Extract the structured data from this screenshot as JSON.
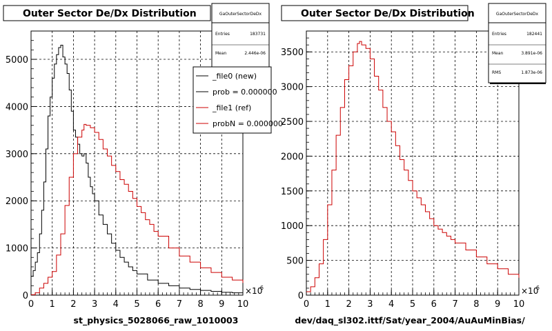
{
  "chart_data": [
    {
      "type": "line",
      "title": "Outer Sector De/Dx Distribution",
      "xlabel": "st_physics_5028066_raw_1010003",
      "x_exponent": "-6",
      "xlim": [
        0,
        10
      ],
      "ylim": [
        0,
        5600
      ],
      "xticks": [
        "0",
        "1",
        "2",
        "3",
        "4",
        "5",
        "6",
        "7",
        "8",
        "9",
        "10"
      ],
      "yticks": [
        "0",
        "1000",
        "2000",
        "3000",
        "4000",
        "5000"
      ],
      "grid": true,
      "stats": {
        "name": "GaOuterSectorDeDx",
        "rows": [
          {
            "label": "Entries",
            "value": "183731"
          },
          {
            "label": "Mean",
            "value": "2.446e-06"
          }
        ]
      },
      "legend": {
        "placement": "top-right",
        "entries": [
          "_file0 (new)",
          "prob = 0.000000",
          "_file1 (ref)",
          "probN = 0.000000"
        ]
      },
      "series": [
        {
          "name": "_file0 (new)",
          "color": "#000000",
          "x": [
            0.0,
            0.1,
            0.2,
            0.3,
            0.4,
            0.5,
            0.6,
            0.7,
            0.8,
            0.9,
            1.0,
            1.1,
            1.2,
            1.3,
            1.4,
            1.5,
            1.6,
            1.7,
            1.8,
            1.9,
            2.0,
            2.1,
            2.2,
            2.3,
            2.4,
            2.5,
            2.6,
            2.7,
            2.8,
            2.9,
            3.0,
            3.2,
            3.4,
            3.6,
            3.8,
            4.0,
            4.2,
            4.4,
            4.6,
            4.8,
            5.0,
            5.5,
            6.0,
            6.5,
            7.0,
            7.5,
            8.0,
            8.5,
            9.0,
            9.5,
            10.0
          ],
          "y": [
            400,
            520,
            700,
            900,
            1300,
            1800,
            2400,
            3100,
            3800,
            4200,
            4600,
            4900,
            5100,
            5250,
            5300,
            5050,
            4900,
            4700,
            4350,
            3900,
            3500,
            3350,
            3200,
            3000,
            2950,
            3000,
            2800,
            2500,
            2300,
            2150,
            2000,
            1700,
            1500,
            1300,
            1100,
            950,
            800,
            700,
            600,
            520,
            450,
            320,
            250,
            200,
            150,
            120,
            100,
            80,
            60,
            50,
            40
          ]
        },
        {
          "name": "_file1 (ref)",
          "color": "#cc0000",
          "x": [
            0.0,
            0.2,
            0.4,
            0.6,
            0.8,
            1.0,
            1.2,
            1.4,
            1.6,
            1.8,
            2.0,
            2.2,
            2.4,
            2.5,
            2.6,
            2.8,
            3.0,
            3.2,
            3.4,
            3.6,
            3.8,
            4.0,
            4.2,
            4.4,
            4.6,
            4.8,
            5.0,
            5.2,
            5.4,
            5.6,
            5.8,
            6.0,
            6.5,
            7.0,
            7.5,
            8.0,
            8.5,
            9.0,
            9.5,
            10.0
          ],
          "y": [
            10,
            50,
            150,
            250,
            380,
            500,
            850,
            1300,
            1900,
            2500,
            3000,
            3350,
            3500,
            3620,
            3600,
            3550,
            3450,
            3300,
            3100,
            2950,
            2750,
            2620,
            2450,
            2350,
            2200,
            2050,
            1880,
            1750,
            1600,
            1500,
            1350,
            1250,
            1000,
            830,
            700,
            580,
            480,
            380,
            320,
            260
          ]
        }
      ]
    },
    {
      "type": "line",
      "title": "Outer Sector De/Dx Distribution",
      "xlabel": "dev/daq_sl302.ittf/Sat/year_2004/AuAuMinBias/",
      "x_exponent": "-6",
      "xlim": [
        0,
        10
      ],
      "ylim": [
        0,
        3800
      ],
      "xticks": [
        "0",
        "1",
        "2",
        "3",
        "4",
        "5",
        "6",
        "7",
        "8",
        "9",
        "10"
      ],
      "yticks": [
        "0",
        "500",
        "1000",
        "1500",
        "2000",
        "2500",
        "3000",
        "3500"
      ],
      "grid": true,
      "stats": {
        "name": "GaOuterSectorDeDx",
        "rows": [
          {
            "label": "Entries",
            "value": "182441"
          },
          {
            "label": "Mean",
            "value": "3.891e-06"
          },
          {
            "label": "RMS",
            "value": "1.873e-06"
          }
        ]
      },
      "series": [
        {
          "color": "#cc0000",
          "x": [
            0.0,
            0.2,
            0.4,
            0.6,
            0.8,
            1.0,
            1.2,
            1.4,
            1.6,
            1.8,
            2.0,
            2.2,
            2.4,
            2.5,
            2.6,
            2.8,
            3.0,
            3.2,
            3.4,
            3.6,
            3.8,
            4.0,
            4.2,
            4.4,
            4.6,
            4.8,
            5.0,
            5.2,
            5.4,
            5.6,
            5.8,
            6.0,
            6.2,
            6.4,
            6.6,
            6.8,
            7.0,
            7.5,
            8.0,
            8.5,
            9.0,
            9.5,
            10.0
          ],
          "y": [
            50,
            120,
            250,
            450,
            800,
            1300,
            1800,
            2300,
            2700,
            3100,
            3300,
            3500,
            3620,
            3650,
            3600,
            3550,
            3400,
            3150,
            2950,
            2700,
            2500,
            2350,
            2150,
            1950,
            1800,
            1650,
            1500,
            1400,
            1300,
            1200,
            1100,
            1000,
            950,
            900,
            850,
            800,
            750,
            650,
            550,
            450,
            380,
            300,
            250
          ]
        }
      ]
    }
  ]
}
